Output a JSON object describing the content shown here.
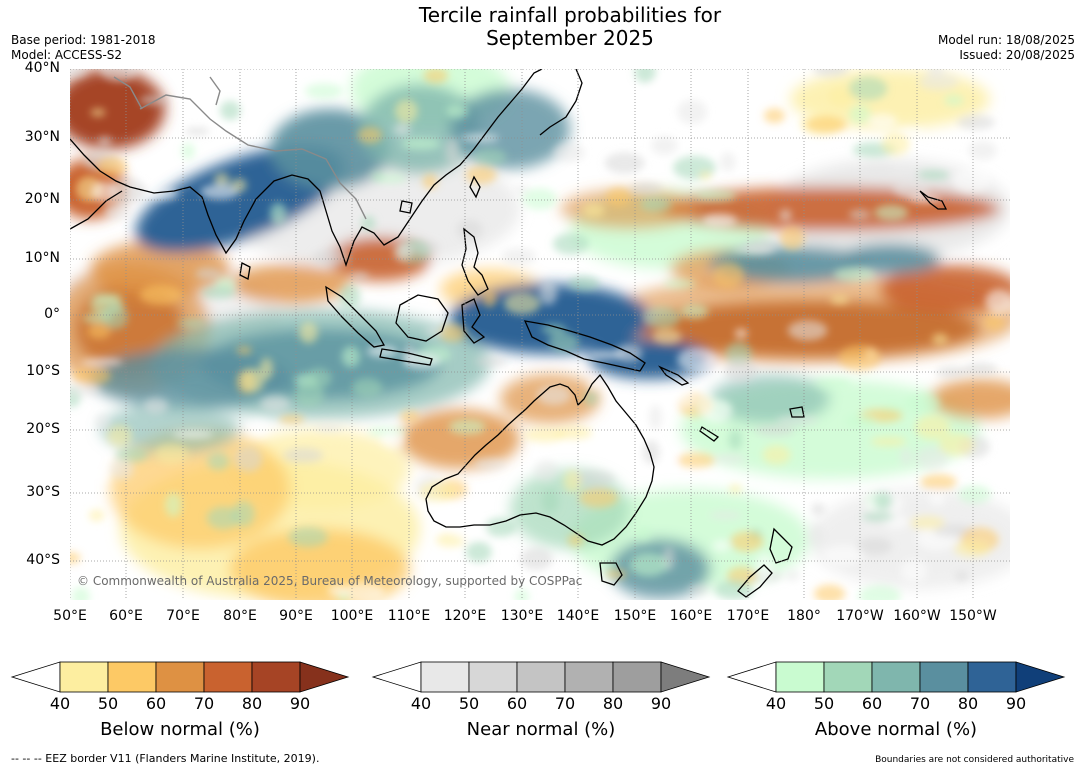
{
  "title_line1": "Tercile rainfall probabilities for",
  "title_line2": "September 2025",
  "meta_left": {
    "base_period": "Base period: 1981-2018",
    "model": "Model: ACCESS-S2"
  },
  "meta_right": {
    "model_run": "Model run: 18/08/2025",
    "issued": "Issued: 20/08/2025"
  },
  "lat_labels": [
    "40°N",
    "30°N",
    "20°N",
    "10°N",
    "0°",
    "10°S",
    "20°S",
    "30°S",
    "40°S"
  ],
  "lon_labels": [
    "50°E",
    "60°E",
    "70°E",
    "80°E",
    "90°E",
    "100°E",
    "110°E",
    "120°E",
    "130°E",
    "140°E",
    "150°E",
    "160°E",
    "170°E",
    "180°",
    "170°W",
    "160°W",
    "150°W"
  ],
  "copyright": "© Commonwealth of Australia 2025, Bureau of Meteorology, supported by COSPPac",
  "colorbars": [
    {
      "label": "Below normal (%)",
      "ticks": [
        "40",
        "50",
        "60",
        "70",
        "80",
        "90"
      ],
      "colors": [
        "#fdeea0",
        "#fdc965",
        "#de9143",
        "#c9622f",
        "#a64425"
      ],
      "low": "#ffffff",
      "high": "#86311c"
    },
    {
      "label": "Near normal (%)",
      "ticks": [
        "40",
        "50",
        "60",
        "70",
        "80",
        "90"
      ],
      "colors": [
        "#e8e8e8",
        "#d7d7d7",
        "#c4c4c4",
        "#b1b1b1",
        "#9e9e9e"
      ],
      "low": "#ffffff",
      "high": "#7d7d7d"
    },
    {
      "label": "Above normal (%)",
      "ticks": [
        "40",
        "50",
        "60",
        "70",
        "80",
        "90"
      ],
      "colors": [
        "#c9fbd0",
        "#a2d7b8",
        "#7fb6ad",
        "#5a8f9f",
        "#2f6396"
      ],
      "low": "#ffffff",
      "high": "#103f79"
    }
  ],
  "footer_left": "--  --  -- EEZ border V11 (Flanders Marine Institute, 2019).",
  "footer_right": "Boundaries are not considered authoritative"
}
